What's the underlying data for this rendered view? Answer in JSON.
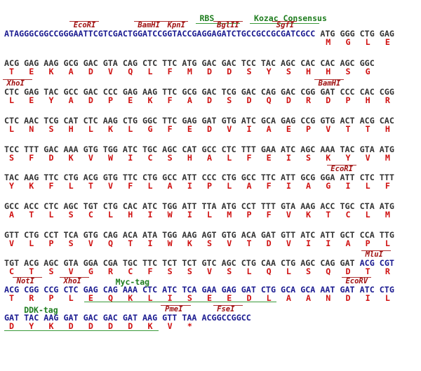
{
  "rows": [
    {
      "annotations": [
        {
          "label": "RBS",
          "color": "#1e7d1e",
          "italic": false
        },
        {
          "label": "Kozac Consensus",
          "color": "#1e7d1e",
          "italic": false
        },
        {
          "label": "EcoRI",
          "color": "#a01010",
          "italic": true
        },
        {
          "label": "BamHI",
          "color": "#a01010",
          "italic": true
        },
        {
          "label": "KpnI",
          "color": "#a01010",
          "italic": true
        },
        {
          "label": "BglII",
          "color": "#a01010",
          "italic": true
        },
        {
          "label": "SgfI",
          "color": "#a01010",
          "italic": true
        }
      ],
      "dna": [
        {
          "text": "ATAGGGCGGCCGGGAATTCGTCGACTGGATCCGGTACCGAGGAGATCTGCCGCCGCGATCGCC",
          "color": "#1a1a90"
        },
        {
          "text": " ATG GGG CTG GAG",
          "color": "#333333"
        }
      ],
      "protein": [
        "M",
        "G",
        "L",
        "E"
      ]
    },
    {
      "annotations": [],
      "dna": [
        {
          "text": "ACG GAG AAG GCG GAC GTA CAG CTC TTC ATG GAC GAC TCC TAC AGC CAC CAC AGC GGC",
          "color": "#333333"
        }
      ],
      "protein": [
        "T",
        "E",
        "K",
        "A",
        "D",
        "V",
        "Q",
        "L",
        "F",
        "M",
        "D",
        "D",
        "S",
        "Y",
        "S",
        "H",
        "H",
        "S",
        "G"
      ]
    },
    {
      "annotations": [
        {
          "label": "XhoI",
          "color": "#a01010",
          "italic": true
        },
        {
          "label": "BamHI",
          "color": "#a01010",
          "italic": true
        }
      ],
      "dna": [
        {
          "text": "CTC GAG TAC GCC GAC CCC GAG AAG TTC GCG GAC TCG GAC CAG GAC CGG GAT CCC CAC CGG",
          "color": "#333333"
        }
      ],
      "protein": [
        "L",
        "E",
        "Y",
        "A",
        "D",
        "P",
        "E",
        "K",
        "F",
        "A",
        "D",
        "S",
        "D",
        "Q",
        "D",
        "R",
        "D",
        "P",
        "H",
        "R"
      ]
    },
    {
      "annotations": [],
      "dna": [
        {
          "text": "CTC AAC TCG CAT CTC AAG CTG GGC TTC GAG GAT GTG ATC GCA GAG CCG GTG ACT ACG CAC",
          "color": "#333333"
        }
      ],
      "protein": [
        "L",
        "N",
        "S",
        "H",
        "L",
        "K",
        "L",
        "G",
        "F",
        "E",
        "D",
        "V",
        "I",
        "A",
        "E",
        "P",
        "V",
        "T",
        "T",
        "H"
      ]
    },
    {
      "annotations": [],
      "dna": [
        {
          "text": "TCC TTT GAC AAA GTG TGG ATC TGC AGC CAT GCC CTC TTT GAA ATC AGC AAA TAC GTA ATG",
          "color": "#333333"
        }
      ],
      "protein": [
        "S",
        "F",
        "D",
        "K",
        "V",
        "W",
        "I",
        "C",
        "S",
        "H",
        "A",
        "L",
        "F",
        "E",
        "I",
        "S",
        "K",
        "Y",
        "V",
        "M"
      ]
    },
    {
      "annotations": [
        {
          "label": "EcoRI",
          "color": "#a01010",
          "italic": true
        }
      ],
      "dna": [
        {
          "text": "TAC AAG TTC CTG ACG GTG TTC CTG GCC ATT CCC CTG GCC TTC ATT GCG GGA ATT CTC TTT",
          "color": "#333333"
        }
      ],
      "protein": [
        "Y",
        "K",
        "F",
        "L",
        "T",
        "V",
        "F",
        "L",
        "A",
        "I",
        "P",
        "L",
        "A",
        "F",
        "I",
        "A",
        "G",
        "I",
        "L",
        "F"
      ]
    },
    {
      "annotations": [],
      "dna": [
        {
          "text": "GCC ACC CTC AGC TGT CTG CAC ATC TGG ATT TTA ATG CCT TTT GTA AAG ACC TGC CTA ATG",
          "color": "#333333"
        }
      ],
      "protein": [
        "A",
        "T",
        "L",
        "S",
        "C",
        "L",
        "H",
        "I",
        "W",
        "I",
        "L",
        "M",
        "P",
        "F",
        "V",
        "K",
        "T",
        "C",
        "L",
        "M"
      ]
    },
    {
      "annotations": [],
      "dna": [
        {
          "text": "GTT CTG CCT TCA GTG CAG ACA ATA TGG AAG AGT GTG ACA GAT GTT ATC ATT GCT CCA TTG",
          "color": "#333333"
        }
      ],
      "protein": [
        "V",
        "L",
        "P",
        "S",
        "V",
        "Q",
        "T",
        "I",
        "W",
        "K",
        "S",
        "V",
        "T",
        "D",
        "V",
        "I",
        "I",
        "A",
        "P",
        "L"
      ]
    },
    {
      "annotations": [
        {
          "label": "MluI",
          "color": "#a01010",
          "italic": true
        }
      ],
      "dna": [
        {
          "text": "TGT ACG AGC GTA GGA CGA TGC TTC TCT TCT GTC AGC CTG CAA CTG AGC CAG GAT ",
          "color": "#333333"
        },
        {
          "text": "ACG CGT",
          "color": "#1a1a90"
        }
      ],
      "protein": [
        "C",
        "T",
        "S",
        "V",
        "G",
        "R",
        "C",
        "F",
        "S",
        "S",
        "V",
        "S",
        "L",
        "Q",
        "L",
        "S",
        "Q",
        "D",
        "T",
        "R"
      ]
    },
    {
      "annotations": [
        {
          "label": "NotI",
          "color": "#a01010",
          "italic": true
        },
        {
          "label": "XhoI",
          "color": "#a01010",
          "italic": true
        },
        {
          "label": "Myc-tag",
          "color": "#1e7d1e",
          "italic": false
        },
        {
          "label": "EcoRV",
          "color": "#a01010",
          "italic": true
        }
      ],
      "dna": [
        {
          "text": "ACG CGG CCG CTC GAG CAG AAA CTC ATC TCA GAA GAG GAT CTG GCA GCA AAT GAT ATC CTG",
          "color": "#1a1a90"
        }
      ],
      "protein": [
        "T",
        "R",
        "P",
        "L",
        "E",
        "Q",
        "K",
        "L",
        "I",
        "S",
        "E",
        "E",
        "D",
        "L",
        "A",
        "A",
        "N",
        "D",
        "I",
        "L"
      ]
    },
    {
      "annotations": [
        {
          "label": "DDK-tag",
          "color": "#1e7d1e",
          "italic": false
        },
        {
          "label": "PmeI",
          "color": "#a01010",
          "italic": true
        },
        {
          "label": "FseI",
          "color": "#a01010",
          "italic": true
        }
      ],
      "dna": [
        {
          "text": "GAT TAC AAG GAT GAC GAC GAT AAG GTT TAA ACGGCCGGCC",
          "color": "#1a1a90"
        }
      ],
      "protein": [
        "D",
        "Y",
        "K",
        "D",
        "D",
        "D",
        "D",
        "K",
        "V",
        "*"
      ]
    }
  ]
}
